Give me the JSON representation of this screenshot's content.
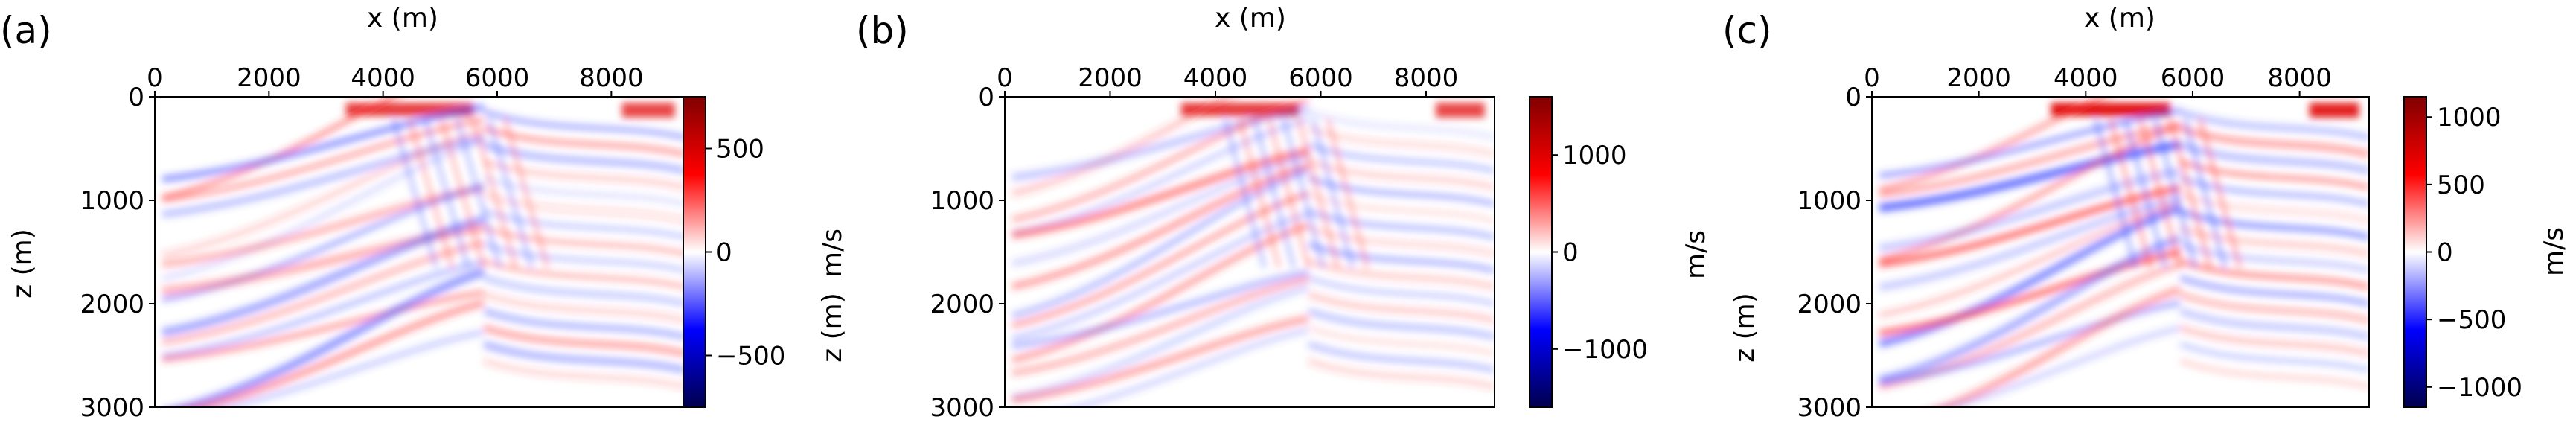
{
  "chart_data": [
    {
      "type": "heatmap",
      "panel_label": "(a)",
      "xlabel": "x (m)",
      "ylabel": "z (m)",
      "colorbar_label": "",
      "xlim": [
        0,
        9300
      ],
      "ylim": [
        3000,
        0
      ],
      "xticks": [
        0,
        2000,
        4000,
        6000,
        8000
      ],
      "yticks": [
        0,
        1000,
        2000,
        3000
      ],
      "colorbar_range": [
        -750,
        750
      ],
      "colorbar_ticks": [
        500,
        0,
        -500
      ],
      "colormap": "seismic"
    },
    {
      "type": "heatmap",
      "panel_label": "(b)",
      "xlabel": "x (m)",
      "ylabel": "z (m)",
      "colorbar_label": "m/s",
      "xlim": [
        0,
        9300
      ],
      "ylim": [
        3000,
        0
      ],
      "xticks": [
        0,
        2000,
        4000,
        6000,
        8000
      ],
      "yticks": [
        0,
        1000,
        2000,
        3000
      ],
      "colorbar_range": [
        -1600,
        1600
      ],
      "colorbar_ticks": [
        1000,
        0,
        -1000
      ],
      "colormap": "seismic"
    },
    {
      "type": "heatmap",
      "panel_label": "(c)",
      "xlabel": "x (m)",
      "ylabel": "z (m)",
      "colorbar_label": "m/s",
      "xlim": [
        0,
        9300
      ],
      "ylim": [
        3000,
        0
      ],
      "xticks": [
        0,
        2000,
        4000,
        6000,
        8000
      ],
      "yticks": [
        0,
        1000,
        2000,
        3000
      ],
      "colorbar_range": [
        -1150,
        1150
      ],
      "colorbar_ticks": [
        1000,
        500,
        0,
        -500,
        -1000
      ],
      "colormap": "seismic"
    }
  ],
  "colormap_stops": [
    "#00004c",
    "#0000ff",
    "#ffffff",
    "#ff0000",
    "#800000"
  ],
  "left_side_label": "m/s"
}
